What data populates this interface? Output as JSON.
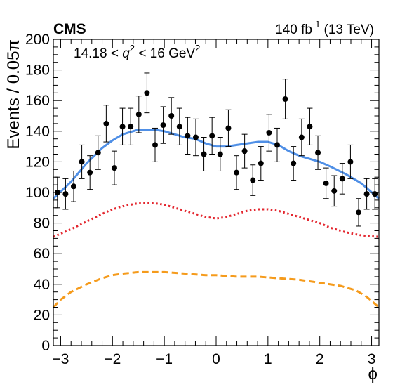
{
  "figure": {
    "experiment": "CMS",
    "lumi_prefix": "140 fb",
    "lumi_exponent": "-1",
    "lumi_suffix": "(13 TeV)",
    "annotation_prefix": "14.18 < ",
    "annotation_var": "q",
    "annotation_var_exp": "2",
    "annotation_middle": " < 16 GeV",
    "annotation_unit_exp": "2"
  },
  "chart_data": {
    "type": "scatter",
    "xlabel": "ϕ",
    "ylabel": "Events / 0.05π",
    "xlim": [
      -3.1416,
      3.1416
    ],
    "ylim": [
      0,
      200
    ],
    "x_ticks": [
      -3,
      -2,
      -1,
      0,
      1,
      2,
      3
    ],
    "x_tick_labels": [
      "−3",
      "−2",
      "−1",
      "0",
      "1",
      "2",
      "3"
    ],
    "y_ticks": [
      0,
      20,
      40,
      60,
      80,
      100,
      120,
      140,
      160,
      180,
      200
    ],
    "y_tick_labels": [
      "0",
      "20",
      "40",
      "60",
      "80",
      "100",
      "120",
      "140",
      "160",
      "180",
      "200"
    ],
    "grid": false,
    "colors": {
      "data": "#000000",
      "total_fit": "#4f8fe6",
      "component_red": "#e3262e",
      "component_orange": "#f59b1c"
    },
    "data_points": {
      "x": [
        -3.063,
        -2.906,
        -2.749,
        -2.592,
        -2.435,
        -2.278,
        -2.121,
        -1.964,
        -1.807,
        -1.65,
        -1.492,
        -1.335,
        -1.178,
        -1.021,
        -0.864,
        -0.707,
        -0.55,
        -0.393,
        -0.236,
        -0.079,
        0.079,
        0.236,
        0.393,
        0.55,
        0.707,
        0.864,
        1.021,
        1.178,
        1.335,
        1.492,
        1.65,
        1.807,
        1.964,
        2.121,
        2.278,
        2.435,
        2.592,
        2.749,
        2.906,
        3.063
      ],
      "y": [
        100,
        99,
        104,
        120,
        113,
        126,
        145,
        116,
        143,
        143,
        151,
        165,
        131,
        144,
        150,
        143,
        137,
        136,
        125,
        137,
        125,
        142,
        113,
        127,
        108,
        119,
        139,
        131,
        161,
        119,
        136,
        143,
        126,
        106,
        101,
        109,
        120,
        87,
        99,
        99
      ],
      "yerr": [
        10,
        10,
        10,
        11,
        11,
        11,
        12,
        11,
        12,
        12,
        12,
        13,
        11,
        12,
        12,
        12,
        12,
        12,
        11,
        12,
        11,
        12,
        11,
        11,
        10,
        11,
        12,
        11,
        13,
        11,
        12,
        12,
        11,
        10,
        10,
        10,
        11,
        9,
        10,
        10
      ]
    },
    "series": [
      {
        "style": "solid",
        "color": "#4f8fe6",
        "x": [
          -3.1416,
          -2.8,
          -2.5,
          -2.2,
          -2.0,
          -1.8,
          -1.5,
          -1.2,
          -1.0,
          -0.8,
          -0.6,
          -0.4,
          -0.2,
          0.0,
          0.2,
          0.4,
          0.6,
          0.8,
          1.0,
          1.2,
          1.4,
          1.6,
          1.8,
          2.0,
          2.2,
          2.5,
          2.8,
          3.1416
        ],
        "y": [
          96,
          107,
          119,
          129,
          134,
          138,
          141,
          141,
          140,
          138,
          136,
          135,
          132,
          130,
          130,
          131,
          132,
          133,
          133,
          131,
          127,
          124,
          122,
          120,
          117,
          112,
          106,
          96
        ]
      },
      {
        "style": "dotted",
        "color": "#e3262e",
        "x": [
          -3.1416,
          -2.8,
          -2.5,
          -2.2,
          -2.0,
          -1.8,
          -1.5,
          -1.2,
          -1.0,
          -0.8,
          -0.6,
          -0.4,
          -0.2,
          0.0,
          0.2,
          0.4,
          0.6,
          0.8,
          1.0,
          1.2,
          1.4,
          1.6,
          1.8,
          2.0,
          2.2,
          2.5,
          2.8,
          3.1416
        ],
        "y": [
          71,
          76,
          81,
          86,
          89,
          91,
          93,
          93,
          92,
          90,
          88,
          86,
          84,
          83,
          84,
          86,
          88,
          89,
          89,
          88,
          86,
          84,
          82,
          80,
          77,
          74,
          72,
          71
        ]
      },
      {
        "style": "dashed",
        "color": "#f59b1c",
        "x": [
          -3.1416,
          -3.0,
          -2.8,
          -2.5,
          -2.2,
          -2.0,
          -1.8,
          -1.5,
          -1.2,
          -1.0,
          -0.6,
          -0.2,
          0.0,
          0.4,
          0.8,
          1.2,
          1.6,
          2.0,
          2.4,
          2.7,
          2.9,
          3.1416
        ],
        "y": [
          25,
          30,
          35,
          40,
          44,
          46,
          47,
          48,
          48,
          48,
          47,
          46,
          46,
          45,
          45,
          44,
          43,
          41,
          39,
          36,
          32,
          25
        ]
      }
    ]
  }
}
